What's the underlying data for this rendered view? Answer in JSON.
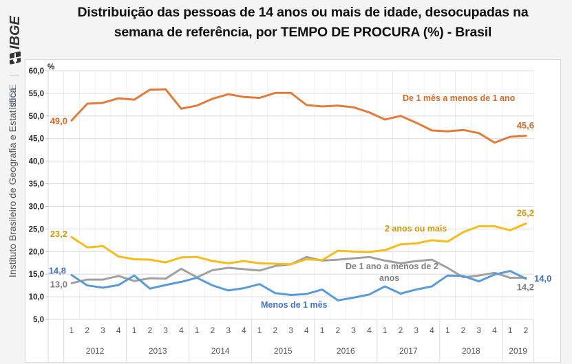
{
  "header": {
    "title_line1": "Distribuição das pessoas de 14 anos ou mais de idade, desocupadas na",
    "title_line2": "semana de referência, por TEMPO DE PROCURA (%) - Brasil"
  },
  "sidebar": {
    "logo_text": "IBGE",
    "institute": "Instituto Brasileiro de Geografia e Estatística",
    "institute_short": "IBGE"
  },
  "chart_data": {
    "type": "line",
    "title": "Distribuição das pessoas de 14 anos ou mais de idade, desocupadas na semana de referência, por TEMPO DE PROCURA (%) - Brasil",
    "ylabel": "%",
    "xlabel": "",
    "ylim": [
      5,
      60
    ],
    "yticks": [
      "5,0",
      "10,0",
      "15,0",
      "20,0",
      "25,0",
      "30,0",
      "35,0",
      "40,0",
      "45,0",
      "50,0",
      "55,0",
      "60,0"
    ],
    "ytick_values": [
      5,
      10,
      15,
      20,
      25,
      30,
      35,
      40,
      45,
      50,
      55,
      60
    ],
    "grid": true,
    "quarters": [
      "1",
      "2",
      "3",
      "4",
      "1",
      "2",
      "3",
      "4",
      "1",
      "2",
      "3",
      "4",
      "1",
      "2",
      "3",
      "4",
      "1",
      "2",
      "3",
      "4",
      "1",
      "2",
      "3",
      "4",
      "1",
      "2",
      "3",
      "4",
      "1",
      "2"
    ],
    "years": [
      {
        "label": "2012",
        "count": 4
      },
      {
        "label": "2013",
        "count": 4
      },
      {
        "label": "2014",
        "count": 4
      },
      {
        "label": "2015",
        "count": 4
      },
      {
        "label": "2016",
        "count": 4
      },
      {
        "label": "2017",
        "count": 4
      },
      {
        "label": "2018",
        "count": 4
      },
      {
        "label": "2019",
        "count": 2
      }
    ],
    "series": [
      {
        "name": "De 1 mês a menos de 1 ano",
        "color": "#e07b39",
        "label_color": "#d06a28",
        "first_label": "49,0",
        "last_label": "45,6",
        "values": [
          49.0,
          52.7,
          52.9,
          53.9,
          53.6,
          55.8,
          55.9,
          51.6,
          52.3,
          53.8,
          54.8,
          54.2,
          54.0,
          55.1,
          55.1,
          52.4,
          52.1,
          52.3,
          51.9,
          50.8,
          49.2,
          50.0,
          48.5,
          46.8,
          46.6,
          46.9,
          46.2,
          44.1,
          45.4,
          45.6
        ]
      },
      {
        "name": "2 anos ou mais",
        "color": "#f5bc1c",
        "label_color": "#c89a12",
        "first_label": "23,2",
        "last_label": "26,2",
        "values": [
          23.2,
          20.9,
          21.2,
          18.9,
          18.3,
          18.2,
          17.6,
          18.7,
          18.8,
          17.9,
          17.4,
          17.9,
          17.4,
          17.3,
          17.2,
          18.3,
          18.1,
          20.2,
          20.0,
          19.9,
          20.3,
          21.6,
          21.8,
          22.5,
          22.2,
          24.3,
          25.6,
          25.6,
          24.7,
          26.2
        ]
      },
      {
        "name": "De 1 ano a menos de 2 anos",
        "name_line1": "De 1 ano a menos de 2",
        "name_line2": "anos",
        "color": "#a0a0a0",
        "label_color": "#7f7f7f",
        "first_label": "13,0",
        "last_label": "14,2",
        "values": [
          13.0,
          13.8,
          13.8,
          14.6,
          13.5,
          14.1,
          14.0,
          16.2,
          14.3,
          15.9,
          16.4,
          16.1,
          15.8,
          16.8,
          17.2,
          18.8,
          18.0,
          18.2,
          18.5,
          18.8,
          18.0,
          17.4,
          17.9,
          18.2,
          16.4,
          14.3,
          14.7,
          15.3,
          14.2,
          14.2
        ]
      },
      {
        "name": "Menos de 1 mês",
        "color": "#5b9bd5",
        "label_color": "#4472c4",
        "first_label": "14,8",
        "last_label": "14,0",
        "values": [
          14.8,
          12.5,
          12.0,
          12.6,
          14.7,
          11.8,
          12.6,
          13.3,
          14.2,
          12.5,
          11.4,
          11.9,
          12.8,
          10.8,
          10.4,
          10.6,
          11.6,
          9.2,
          9.8,
          10.5,
          12.3,
          10.7,
          11.6,
          12.3,
          14.7,
          14.6,
          13.4,
          14.9,
          15.7,
          14.0
        ]
      }
    ]
  }
}
